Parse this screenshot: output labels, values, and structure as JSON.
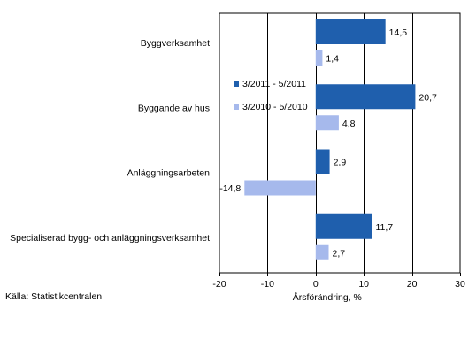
{
  "chart_data": {
    "type": "bar",
    "orientation": "horizontal",
    "categories": [
      "Byggverksamhet",
      "Byggande av hus",
      "Anläggningsarbeten",
      "Specialiserad bygg- och anläggningsverksamhet"
    ],
    "series": [
      {
        "name": "3/2011 - 5/2011",
        "values": [
          14.5,
          20.7,
          2.9,
          11.7
        ],
        "labels": [
          "14,5",
          "20,7",
          "2,9",
          "11,7"
        ],
        "color": "#1f5fad"
      },
      {
        "name": "3/2010 - 5/2010",
        "values": [
          1.4,
          4.8,
          -14.8,
          2.7
        ],
        "labels": [
          "1,4",
          "4,8",
          "-14,8",
          "2,7"
        ],
        "color": "#a6b9ec"
      }
    ],
    "xlim": [
      -20,
      30
    ],
    "xticks": [
      -20,
      -10,
      0,
      10,
      20,
      30
    ],
    "xlabel": "Årsförändring, %",
    "grid": "vertical",
    "legend_position": "inside-left"
  },
  "source": "Källa: Statistikcentralen"
}
